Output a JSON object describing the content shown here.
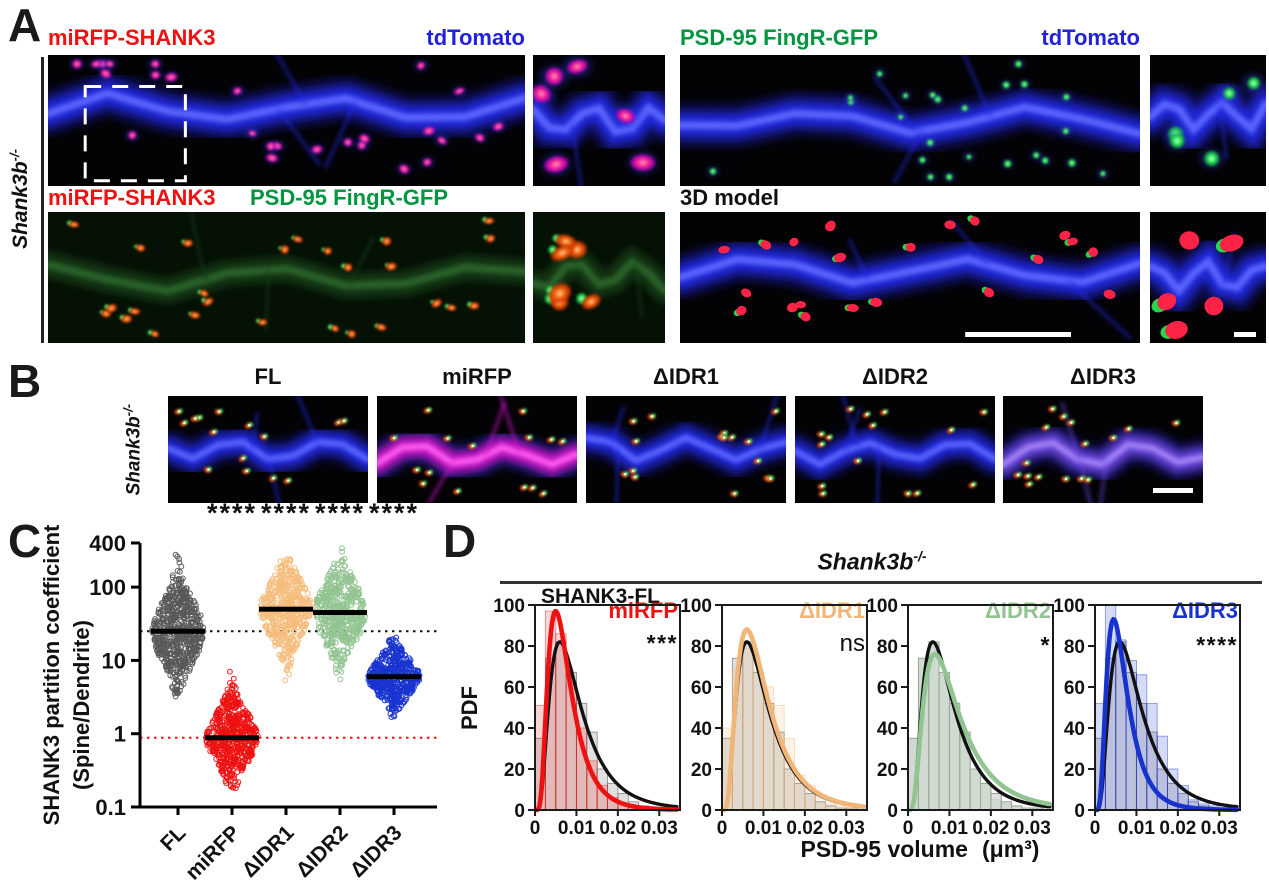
{
  "panelA": {
    "label": "A",
    "side_label": {
      "base": "Shank3b",
      "sup": "-/-"
    },
    "row1_left": {
      "left": "miRFP-SHANK3",
      "right": "tdTomato"
    },
    "row1_right": {
      "left": "PSD-95 FingR-GFP",
      "right": "tdTomato"
    },
    "row2_left": {
      "left": "miRFP-SHANK3",
      "right": "PSD-95 FingR-GFP"
    },
    "row2_right": {
      "left": "3D model"
    },
    "colors": {
      "red": "#ee1111",
      "blue": "#2222dd",
      "green": "#009640",
      "black": "#111111"
    }
  },
  "panelB": {
    "label": "B",
    "side_label": {
      "base": "Shank3b",
      "sup": "-/-"
    },
    "columns": [
      "FL",
      "miRFP",
      "ΔIDR1",
      "ΔIDR2",
      "ΔIDR3"
    ]
  },
  "chart_data": [
    {
      "id": "panel-C",
      "type": "scatter",
      "panel_label": "C",
      "ylabel_line1": "SHANK3 partition coefficient",
      "ylabel_line2": "(Spine/Dendrite)",
      "yscale": "log",
      "ylim": [
        0.1,
        400
      ],
      "yticks": [
        "400",
        "100",
        "10",
        "1",
        "0.1"
      ],
      "categories": [
        "FL",
        "miRFP",
        "ΔIDR1",
        "ΔIDR2",
        "ΔIDR3"
      ],
      "significance": [
        "",
        "****",
        "****",
        "****",
        "****"
      ],
      "groups": [
        {
          "label": "FL",
          "color": "#595959",
          "median": 25,
          "log_sd": 0.37,
          "log_lo": 0.42,
          "log_hi": 2.55,
          "n": 640
        },
        {
          "label": "miRFP",
          "color": "#ee1111",
          "median": 0.88,
          "log_sd": 0.3,
          "log_lo": -0.78,
          "log_hi": 0.9,
          "n": 560
        },
        {
          "label": "ΔIDR1",
          "color": "#f5bd7c",
          "median": 50,
          "log_sd": 0.33,
          "log_lo": 0.64,
          "log_hi": 2.42,
          "n": 520
        },
        {
          "label": "ΔIDR2",
          "color": "#92c492",
          "median": 45,
          "log_sd": 0.35,
          "log_lo": 0.67,
          "log_hi": 2.54,
          "n": 520
        },
        {
          "label": "ΔIDR3",
          "color": "#1733cf",
          "median": 6,
          "log_sd": 0.22,
          "log_lo": 0.2,
          "log_hi": 1.4,
          "n": 500
        }
      ],
      "reference_lines": [
        {
          "y": 25,
          "color": "#111111"
        },
        {
          "y": 0.88,
          "color": "#ee1111"
        }
      ]
    },
    {
      "id": "panel-D",
      "type": "histogram-pdf",
      "panel_label": "D",
      "suptitle": {
        "base": "Shank3b",
        "sup": "-/-"
      },
      "reference_label": "SHANK3-FL",
      "ylabel": "PDF",
      "xlabel": "PSD-95 volume",
      "xlabel_unit": "(μm³)",
      "ylim": [
        0,
        100
      ],
      "yticks": [
        0,
        20,
        40,
        60,
        80,
        100
      ],
      "xlim": [
        0,
        0.035
      ],
      "xticks": [
        0,
        0.01,
        0.02,
        0.03
      ],
      "bin_width": 0.0025,
      "fl_hist": [
        35,
        74,
        82,
        67,
        52,
        38,
        20,
        13,
        8,
        4,
        2,
        1,
        1,
        2
      ],
      "fl_curve": {
        "peak": 82,
        "mode": 0.006,
        "sigma": 0.62,
        "color": "#111111"
      },
      "subplots": [
        {
          "label": "miRFP",
          "color": "#ee1111",
          "significance": "***",
          "hist": [
            51,
            97,
            86,
            62,
            40,
            24,
            12,
            6,
            3,
            2,
            1,
            1,
            0,
            1
          ],
          "curve": {
            "peak": 97,
            "mode": 0.005,
            "sigma": 0.55
          }
        },
        {
          "label": "ΔIDR1",
          "color": "#f0b577",
          "significance": "ns",
          "hist": [
            40,
            69,
            79,
            68,
            60,
            51,
            35,
            17,
            12,
            6,
            3,
            2,
            1,
            1
          ],
          "curve": {
            "peak": 88,
            "mode": 0.006,
            "sigma": 0.62
          }
        },
        {
          "label": "ΔIDR2",
          "color": "#92c492",
          "significance": "*",
          "hist": [
            35,
            74,
            82,
            66,
            52,
            38,
            20,
            13,
            5,
            3,
            2,
            1,
            1,
            2
          ],
          "curve": {
            "peak": 76,
            "mode": 0.0065,
            "sigma": 0.65
          }
        },
        {
          "label": "ΔIDR3",
          "color": "#1733cf",
          "significance": "****",
          "hist": [
            52,
            100,
            83,
            73,
            66,
            52,
            36,
            20,
            12,
            5,
            3,
            2,
            1,
            1
          ],
          "curve": {
            "peak": 93,
            "mode": 0.0045,
            "sigma": 0.55
          }
        }
      ]
    }
  ]
}
